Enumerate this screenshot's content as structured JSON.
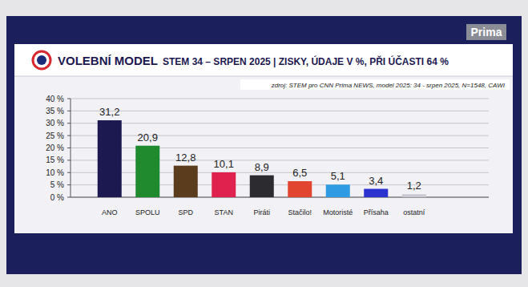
{
  "chart_data": {
    "type": "bar",
    "title": "VOLEBNÍ MODEL",
    "subtitle": "STEM 34 – SRPEN 2025 | ZISKY, ÚDAJE V %, PŘI ÚČASTI 64 %",
    "annotations": [
      "zdroj: STEM pro CNN Prima NEWS, model 2025: 34 - srpen 2025, N=1548, CAWI",
      "Prima"
    ],
    "categories": [
      "ANO",
      "SPOLU",
      "SPD",
      "STAN",
      "Piráti",
      "Stačilo!",
      "Motoristé",
      "Přísaha",
      "ostatní"
    ],
    "values": [
      31.2,
      20.9,
      12.8,
      10.1,
      8.9,
      6.5,
      5.1,
      3.4,
      1.2
    ],
    "value_labels": [
      "31,2",
      "20,9",
      "12,8",
      "10,1",
      "8,9",
      "6,5",
      "5,1",
      "3,4",
      "1,2"
    ],
    "colors": [
      "#1c1850",
      "#1f8a2e",
      "#5b3c1c",
      "#e0234e",
      "#2c2c30",
      "#e2452f",
      "#2f9be2",
      "#2b32d0",
      "#c8c8d0"
    ],
    "data_labels": true,
    "grid": true,
    "ylim": [
      0,
      40
    ],
    "yticks": [
      {
        "value": 0,
        "label": "0 %"
      },
      {
        "value": 5,
        "label": "5 %"
      },
      {
        "value": 10,
        "label": "10 %"
      },
      {
        "value": 15,
        "label": "15 %"
      },
      {
        "value": 20,
        "label": "20 %"
      },
      {
        "value": 25,
        "label": "25 %"
      },
      {
        "value": 30,
        "label": "30 %"
      },
      {
        "value": 35,
        "label": "35 %"
      },
      {
        "value": 40,
        "label": "40 %"
      }
    ]
  }
}
